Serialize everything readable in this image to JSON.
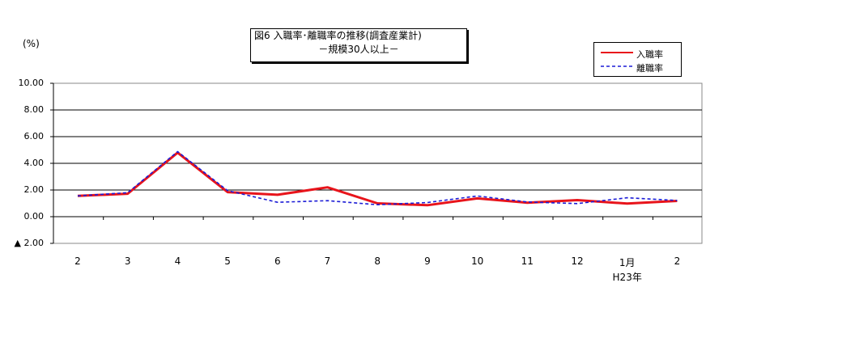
{
  "chart_data": {
    "type": "line",
    "title": "図6  入職率･離職率の推移(調査産業計)",
    "subtitle": "－規模30人以上－",
    "unit": "(%)",
    "categories": [
      "2",
      "3",
      "4",
      "5",
      "6",
      "7",
      "8",
      "9",
      "10",
      "11",
      "12",
      "1月",
      "2"
    ],
    "category_sublabels": [
      "",
      "",
      "",
      "",
      "",
      "",
      "",
      "",
      "",
      "",
      "",
      "H23年",
      ""
    ],
    "ylim": [
      -2.0,
      10.0
    ],
    "yticks": [
      {
        "value": 10,
        "label": "10.00"
      },
      {
        "value": 8,
        "label": "8.00"
      },
      {
        "value": 6,
        "label": "6.00"
      },
      {
        "value": 4,
        "label": "4.00"
      },
      {
        "value": 2,
        "label": "2.00"
      },
      {
        "value": 0,
        "label": "0.00"
      },
      {
        "value": -2,
        "label": "▲ 2.00"
      }
    ],
    "grid": true,
    "legend_position": "top-right",
    "series": [
      {
        "name": "入職率",
        "color": "#e8141b",
        "style": "solid",
        "values": [
          1.56,
          1.72,
          4.8,
          1.84,
          1.64,
          2.2,
          1.0,
          0.86,
          1.37,
          1.05,
          1.24,
          0.98,
          1.18
        ]
      },
      {
        "name": "離職率",
        "color": "#1c1cd6",
        "style": "dashed",
        "values": [
          1.56,
          1.8,
          4.88,
          1.95,
          1.08,
          1.2,
          0.9,
          1.06,
          1.55,
          1.1,
          0.98,
          1.42,
          1.22
        ]
      }
    ]
  }
}
